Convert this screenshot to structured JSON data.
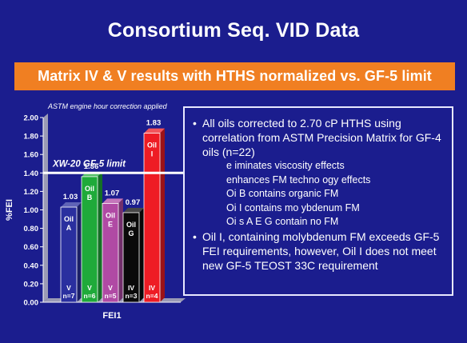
{
  "title": "Consortium Seq. VID Data",
  "subtitle": "Matrix IV & V results with HTHS normalized vs. GF-5 limit",
  "note": "ASTM engine hour correction applied",
  "chart_data": {
    "type": "bar",
    "xlabel": "FEI1",
    "ylabel": "%FEI",
    "ylim": [
      0,
      2.0
    ],
    "yticks": [
      "0.00",
      "0.20",
      "0.40",
      "0.60",
      "0.80",
      "1.00",
      "1.20",
      "1.40",
      "1.60",
      "1.80",
      "2.00"
    ],
    "bars": [
      {
        "name": "Oil A",
        "value": 1.03,
        "label": "1.03",
        "matrix": "V",
        "n": "n=7",
        "color": "#2a2f9f"
      },
      {
        "name": "Oil B",
        "value": 1.36,
        "label": "1.36",
        "matrix": "V",
        "n": "n=6",
        "color": "#1faa3a"
      },
      {
        "name": "Oil E",
        "value": 1.07,
        "label": "1.07",
        "matrix": "V",
        "n": "n=5",
        "color": "#b04aa4"
      },
      {
        "name": "Oil G",
        "value": 0.97,
        "label": "0.97",
        "matrix": "IV",
        "n": "n=3",
        "color": "#0a0a0a"
      },
      {
        "name": "Oil I",
        "value": 1.83,
        "label": "1.83",
        "matrix": "IV",
        "n": "n=4",
        "color": "#ee1c24"
      }
    ],
    "limit": {
      "value": 1.4,
      "label": "XW-20 GF-5 limit"
    }
  },
  "textbox": {
    "bullet1": "All oils corrected to 2.70 cP HTHS using correlation from ASTM Precision Matrix for GF-4 oils (n=22)",
    "sub": [
      "e iminates viscosity effects",
      "enhances FM techno ogy effects",
      "Oi  B contains organic FM",
      "Oi  I contains mo ybdenum FM",
      "Oi s A E G contain no FM"
    ],
    "bullet2": "Oil I, containing molybdenum FM exceeds GF-5 FEI requirements, however, Oil I does not meet new GF-5 TEOST 33C requirement"
  }
}
